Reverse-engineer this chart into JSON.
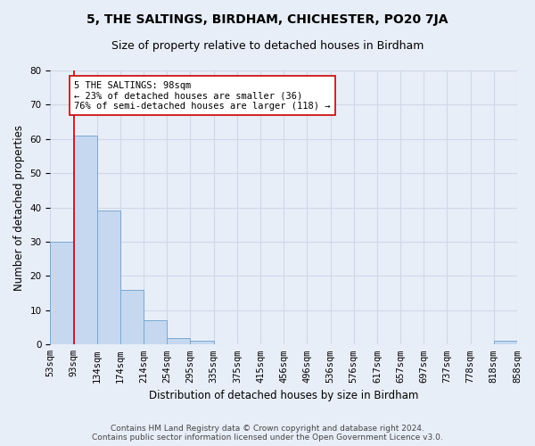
{
  "title": "5, THE SALTINGS, BIRDHAM, CHICHESTER, PO20 7JA",
  "subtitle": "Size of property relative to detached houses in Birdham",
  "xlabel": "Distribution of detached houses by size in Birdham",
  "ylabel": "Number of detached properties",
  "bar_values": [
    30,
    61,
    39,
    16,
    7,
    2,
    1,
    0,
    0,
    0,
    0,
    0,
    0,
    0,
    0,
    0,
    0,
    0,
    0,
    1
  ],
  "bin_labels": [
    "53sqm",
    "93sqm",
    "134sqm",
    "174sqm",
    "214sqm",
    "254sqm",
    "295sqm",
    "335sqm",
    "375sqm",
    "415sqm",
    "456sqm",
    "496sqm",
    "536sqm",
    "576sqm",
    "617sqm",
    "657sqm",
    "697sqm",
    "737sqm",
    "778sqm",
    "818sqm",
    "858sqm"
  ],
  "bar_color": "#c5d8f0",
  "bar_edge_color": "#7aa8d4",
  "vline_x": 0.5,
  "vline_color": "#cc0000",
  "annotation_text": "5 THE SALTINGS: 98sqm\n← 23% of detached houses are smaller (36)\n76% of semi-detached houses are larger (118) →",
  "annotation_box_color": "white",
  "annotation_box_edge": "#cc0000",
  "ylim": [
    0,
    80
  ],
  "yticks": [
    0,
    10,
    20,
    30,
    40,
    50,
    60,
    70,
    80
  ],
  "grid_color": "#d0d8e8",
  "bg_color": "#e8eef8",
  "footer_line1": "Contains HM Land Registry data © Crown copyright and database right 2024.",
  "footer_line2": "Contains public sector information licensed under the Open Government Licence v3.0.",
  "title_fontsize": 10,
  "subtitle_fontsize": 9,
  "axis_label_fontsize": 8.5,
  "tick_fontsize": 7.5,
  "annotation_fontsize": 7.5,
  "footer_fontsize": 6.5
}
